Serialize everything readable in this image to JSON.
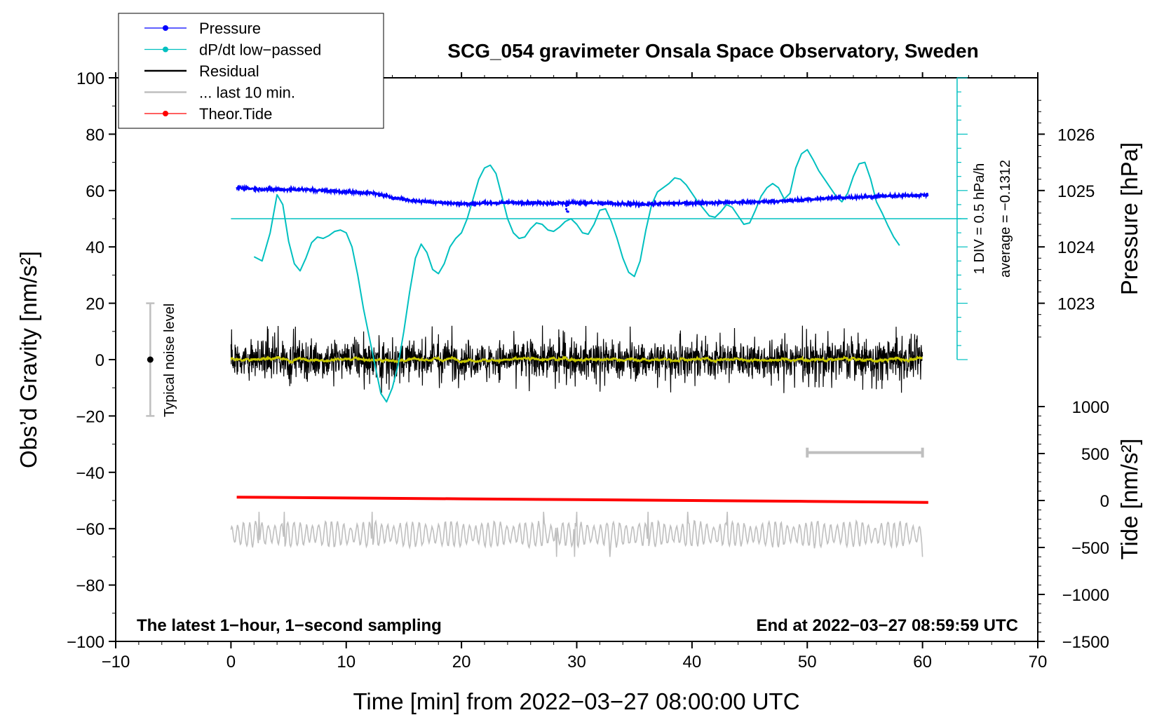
{
  "chart_data": {
    "type": "line",
    "title": "SCG_054 gravimeter Onsala Space Observatory, Sweden",
    "xlabel": "Time [min] from 2022−03−27 08:00:00 UTC",
    "ylabel_left": "Obs’d Gravity [nm/s²]",
    "ylabel_right_pressure": "Pressure [hPa]",
    "ylabel_right_tide": "Tide [nm/s²]",
    "xlim": [
      -10,
      70
    ],
    "ylim": [
      -100,
      100
    ],
    "x_ticks": [
      "−10",
      "0",
      "10",
      "20",
      "30",
      "40",
      "50",
      "60",
      "70"
    ],
    "y_ticks": [
      "100",
      "80",
      "60",
      "40",
      "20",
      "0",
      "−20",
      "−40",
      "−60",
      "−80",
      "−100"
    ],
    "pressure_ticks": [
      "1026",
      "1025",
      "1024",
      "1023"
    ],
    "tide_ticks": [
      "1000",
      "500",
      "0",
      "−500",
      "−1000",
      "−1500"
    ],
    "pressure_axis": {
      "ref_gravity": 60,
      "ref_hPa": 1025,
      "nm_s2_per_hPa": 20
    },
    "tide_axis": {
      "min": -1500,
      "max": 1000
    },
    "legend": [
      {
        "label": "Pressure",
        "color": "#0000ff",
        "style": "line-dot"
      },
      {
        "label": "dP/dt low−passed",
        "color": "#00c0c0",
        "style": "line-dot"
      },
      {
        "label": "Residual",
        "color": "#000000",
        "style": "line"
      },
      {
        "label": "... last 10 min.",
        "color": "#bfbfbf",
        "style": "line"
      },
      {
        "label": "Theor.Tide",
        "color": "#ff0000",
        "style": "line-dot"
      }
    ],
    "annotations": {
      "noise": "Typical noise level",
      "dpdt_scale": "1 DIV = 0.5 hPa/h",
      "dpdt_average": "average = −0.1312",
      "bottom_left": "The latest 1−hour, 1−second sampling",
      "bottom_right": "End at 2022−03−27 08:59:59 UTC"
    },
    "noise_bar": {
      "x": -7,
      "center": 0,
      "low": -20,
      "high": 20
    },
    "last10_bar": {
      "x_start": 50,
      "x_end": 60,
      "y": -33
    },
    "dpdt_axis": {
      "x": 63,
      "y_bottom": 0,
      "y_top": 100,
      "ticks_per_div": 4,
      "baseline": 50,
      "baseline_x_start": 0,
      "baseline_x_end": 63
    },
    "series": [
      {
        "name": "Pressure",
        "color": "#0000ff",
        "x": [
          0.5,
          2,
          4,
          6,
          8,
          10,
          12,
          13,
          14,
          16,
          18,
          20,
          22,
          24,
          26,
          28,
          30,
          32,
          34,
          36,
          38,
          40,
          42,
          44,
          46,
          48,
          50,
          52,
          54,
          56,
          58,
          60.5
        ],
        "values": [
          61,
          60.6,
          60.3,
          60.4,
          60,
          59.5,
          59.2,
          58.5,
          57.5,
          56.3,
          55.8,
          55.3,
          55.5,
          55.7,
          55.7,
          55.5,
          55.7,
          55.5,
          55.2,
          55.2,
          55.5,
          55.5,
          55.7,
          55.8,
          56,
          56.3,
          56.8,
          57.3,
          57.6,
          57.9,
          58.1,
          58.5
        ],
        "noise": 0.6
      },
      {
        "name": "dP/dt low−passed",
        "color": "#00c0c0",
        "x": [
          2,
          2.7,
          3.4,
          4,
          4.5,
          5,
          5.5,
          6,
          6.5,
          7,
          7.5,
          8,
          8.5,
          9,
          9.5,
          10,
          10.5,
          11,
          11.5,
          12,
          12.5,
          13,
          13.5,
          14,
          14.5,
          15,
          15.5,
          16,
          16.5,
          17,
          17.5,
          18,
          18.5,
          19,
          19.5,
          20,
          20.5,
          21,
          21.5,
          22,
          22.5,
          23,
          23.5,
          24,
          24.5,
          25,
          25.5,
          26,
          26.5,
          27,
          27.5,
          28,
          28.5,
          29,
          29.5,
          30,
          30.5,
          31,
          31.5,
          32,
          32.5,
          33,
          33.5,
          34,
          34.5,
          35,
          35.5,
          36,
          36.5,
          37,
          37.5,
          38,
          38.5,
          39,
          39.5,
          40,
          40.5,
          41,
          41.5,
          42,
          42.5,
          43,
          43.5,
          44,
          44.5,
          45,
          45.5,
          46,
          46.5,
          47,
          47.5,
          48,
          48.5,
          49,
          49.5,
          50,
          50.5,
          51,
          51.5,
          52,
          52.5,
          53,
          53.5,
          54,
          54.5,
          55,
          55.5,
          56,
          56.5,
          57,
          57.5,
          58
        ],
        "values": [
          36.5,
          35,
          45,
          58.5,
          55,
          42,
          34,
          31.5,
          36,
          41.5,
          43.5,
          43,
          44,
          45.5,
          46,
          45,
          40,
          30,
          18,
          8,
          -2,
          -12,
          -15,
          -10,
          -2,
          10,
          24,
          36,
          41,
          38,
          32,
          30.5,
          34,
          40,
          43,
          45,
          50,
          57,
          64,
          68,
          69,
          66,
          58,
          50,
          45,
          43,
          43.5,
          46.5,
          48.5,
          48,
          46,
          45.5,
          47,
          49,
          50,
          48,
          45,
          44.5,
          48,
          53,
          53.5,
          49,
          43,
          36,
          31,
          29.5,
          35,
          46,
          55,
          59.5,
          61,
          62.5,
          64.5,
          64,
          62,
          59,
          56,
          53.5,
          51,
          50.5,
          52.5,
          55,
          54,
          51,
          48,
          48.5,
          53,
          58,
          61,
          62.5,
          61,
          57,
          59,
          68,
          73,
          74.5,
          71,
          67,
          64,
          61,
          58,
          56,
          59,
          65,
          69.5,
          70,
          64,
          56,
          52,
          47.5,
          43.5,
          40.5
        ]
      },
      {
        "name": "Residual",
        "color": "#000000",
        "x_start": 0,
        "x_end": 60,
        "samples": 2200,
        "amplitude": 6,
        "spike_amplitude": 11,
        "center": 0,
        "smoothed_color": "#c8c800"
      },
      {
        "name": "... last 10 min.",
        "color": "#bfbfbf",
        "x_start": 0,
        "x_end": 60,
        "samples": 960,
        "center": -62,
        "amplitude": 4
      },
      {
        "name": "Theor.Tide",
        "color": "#ff0000",
        "x": [
          0.5,
          10,
          20,
          30,
          40,
          50,
          60.5
        ],
        "values": [
          -48.8,
          -49.1,
          -49.4,
          -49.7,
          -50.0,
          -50.3,
          -50.7
        ]
      }
    ]
  }
}
